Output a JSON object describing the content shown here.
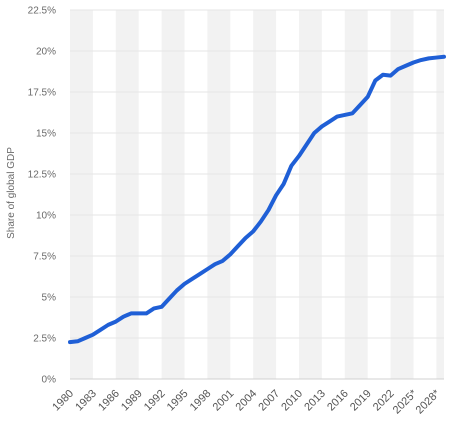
{
  "chart_data": {
    "type": "line",
    "title": "",
    "xlabel": "",
    "ylabel": "Share of global GDP",
    "ylim": [
      0,
      22.5
    ],
    "yticks": [
      0,
      2.5,
      5,
      7.5,
      10,
      12.5,
      15,
      17.5,
      20,
      22.5
    ],
    "ytick_labels": [
      "0%",
      "2.5%",
      "5%",
      "7.5%",
      "10%",
      "12.5%",
      "15%",
      "17.5%",
      "20%",
      "22.5%"
    ],
    "xtick_labels": [
      "1980",
      "1983",
      "1986",
      "1989",
      "1992",
      "1995",
      "1998",
      "2001",
      "2004",
      "2007",
      "2010",
      "2013",
      "2016",
      "2019",
      "2022",
      "2025*",
      "2028*"
    ],
    "grid": true,
    "colors": {
      "line": "#1f5fd6",
      "band": "#f2f2f2",
      "axis": "#d0d0d0",
      "grid": "#e6e6e6"
    },
    "x": [
      1980,
      1981,
      1982,
      1983,
      1984,
      1985,
      1986,
      1987,
      1988,
      1989,
      1990,
      1991,
      1992,
      1993,
      1994,
      1995,
      1996,
      1997,
      1998,
      1999,
      2000,
      2001,
      2002,
      2003,
      2004,
      2005,
      2006,
      2007,
      2008,
      2009,
      2010,
      2011,
      2012,
      2013,
      2014,
      2015,
      2016,
      2017,
      2018,
      2019,
      2020,
      2021,
      2022,
      2023,
      2024,
      2025,
      2026,
      2027,
      2028,
      2029
    ],
    "series": [
      {
        "values": [
          2.25,
          2.3,
          2.5,
          2.7,
          3.0,
          3.3,
          3.5,
          3.8,
          4.0,
          4.0,
          4.0,
          4.3,
          4.4,
          4.9,
          5.4,
          5.8,
          6.1,
          6.4,
          6.7,
          7.0,
          7.2,
          7.6,
          8.1,
          8.6,
          9.0,
          9.6,
          10.3,
          11.2,
          11.9,
          13.0,
          13.6,
          14.3,
          15.0,
          15.4,
          15.7,
          16.0,
          16.1,
          16.2,
          16.7,
          17.2,
          18.2,
          18.55,
          18.5,
          18.9,
          19.1,
          19.3,
          19.45,
          19.55,
          19.6,
          19.65
        ]
      }
    ]
  }
}
